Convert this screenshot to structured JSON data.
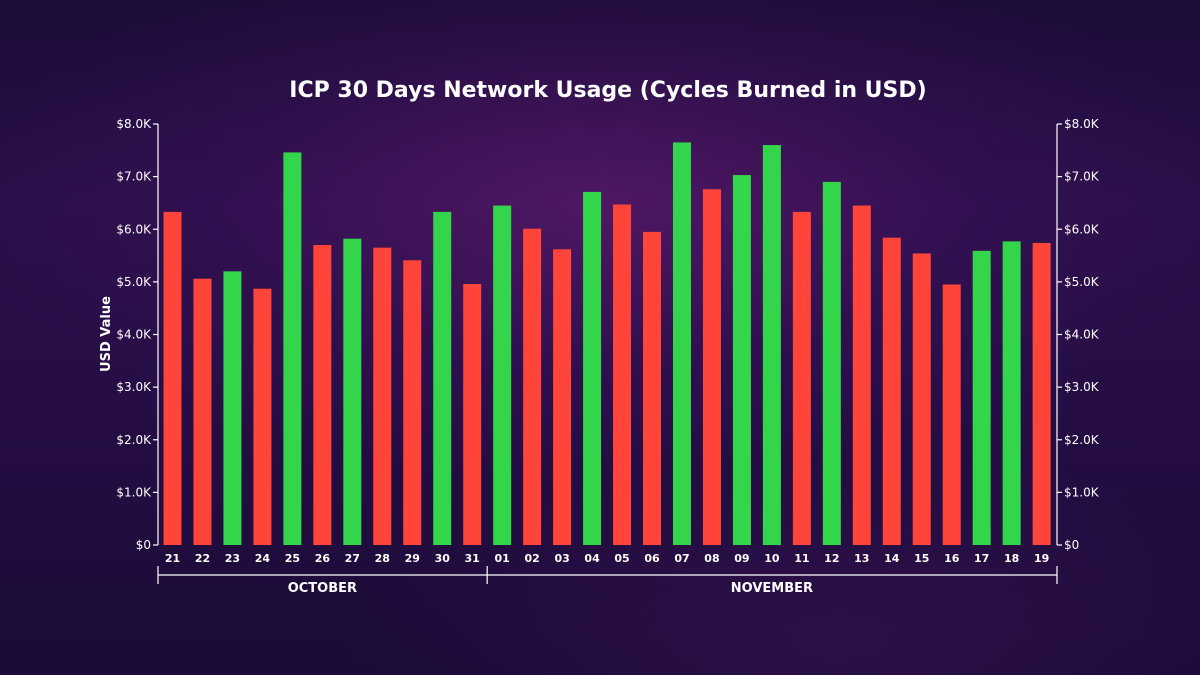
{
  "chart_data": {
    "type": "bar",
    "title": "ICP 30 Days Network Usage (Cycles Burned in USD)",
    "xlabel": "",
    "ylabel": "USD Value",
    "ylim": [
      0,
      8000
    ],
    "yticks": [
      0,
      1000,
      2000,
      3000,
      4000,
      5000,
      6000,
      7000,
      8000
    ],
    "ytick_labels": [
      "$0",
      "$1.0K",
      "$2.0K",
      "$3.0K",
      "$4.0K",
      "$5.0K",
      "$6.0K",
      "$7.0K",
      "$8.0K"
    ],
    "right_axis_mirror": true,
    "categories": [
      "21",
      "22",
      "23",
      "24",
      "25",
      "26",
      "27",
      "28",
      "29",
      "30",
      "31",
      "01",
      "02",
      "03",
      "04",
      "05",
      "06",
      "07",
      "08",
      "09",
      "10",
      "11",
      "12",
      "13",
      "14",
      "15",
      "16",
      "17",
      "18",
      "19"
    ],
    "values": [
      6330,
      5060,
      5200,
      4870,
      7460,
      5700,
      5820,
      5650,
      5410,
      6330,
      4960,
      6450,
      6010,
      5620,
      6710,
      6470,
      5950,
      7650,
      6760,
      7030,
      7600,
      6330,
      6900,
      6450,
      5840,
      5540,
      4950,
      5590,
      5770,
      5740
    ],
    "bar_colors": [
      "red",
      "red",
      "green",
      "red",
      "green",
      "red",
      "green",
      "red",
      "red",
      "green",
      "red",
      "green",
      "red",
      "red",
      "green",
      "red",
      "red",
      "green",
      "red",
      "green",
      "green",
      "red",
      "green",
      "red",
      "red",
      "red",
      "red",
      "green",
      "green",
      "red"
    ],
    "colors": {
      "green": "#33d64a",
      "red": "#ff4539",
      "axis": "#ffffff"
    },
    "month_groups": [
      {
        "label": "OCTOBER",
        "start": 0,
        "end": 10
      },
      {
        "label": "NOVEMBER",
        "start": 11,
        "end": 29
      }
    ]
  }
}
